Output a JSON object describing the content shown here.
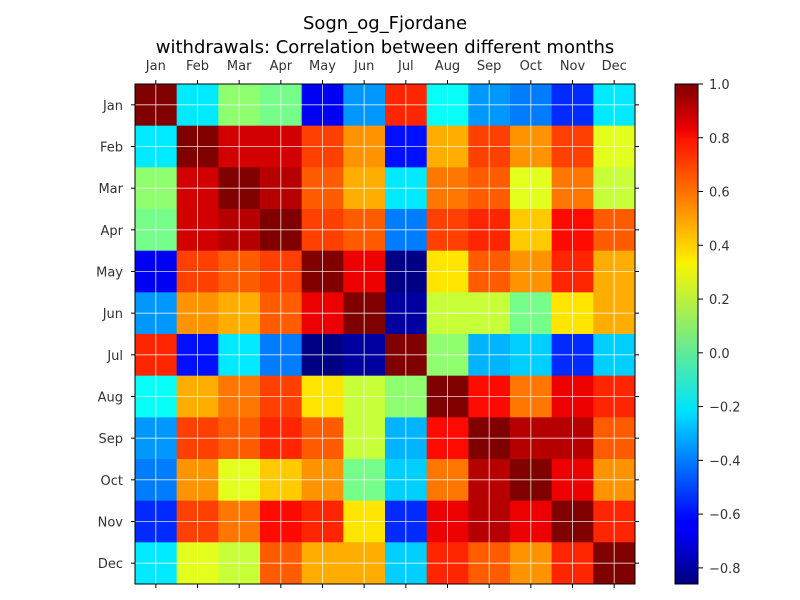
{
  "chart_data": {
    "type": "heatmap",
    "title": "Sogn_og_Fjordane",
    "subtitle": "withdrawals: Correlation between different months",
    "x_categories": [
      "Jan",
      "Feb",
      "Mar",
      "Apr",
      "May",
      "Jun",
      "Jul",
      "Aug",
      "Sep",
      "Oct",
      "Nov",
      "Dec"
    ],
    "y_categories": [
      "Jan",
      "Feb",
      "Mar",
      "Apr",
      "May",
      "Jun",
      "Jul",
      "Aug",
      "Sep",
      "Oct",
      "Nov",
      "Dec"
    ],
    "values": [
      [
        1.0,
        -0.2,
        0.1,
        0.05,
        -0.65,
        -0.35,
        0.7,
        -0.15,
        -0.35,
        -0.4,
        -0.55,
        -0.2
      ],
      [
        -0.2,
        1.0,
        0.85,
        0.85,
        0.65,
        0.5,
        -0.6,
        0.45,
        0.65,
        0.5,
        0.65,
        0.25
      ],
      [
        0.1,
        0.85,
        1.0,
        0.9,
        0.6,
        0.45,
        -0.2,
        0.55,
        0.6,
        0.25,
        0.55,
        0.2
      ],
      [
        0.05,
        0.85,
        0.9,
        1.0,
        0.65,
        0.6,
        -0.4,
        0.65,
        0.7,
        0.4,
        0.75,
        0.6
      ],
      [
        -0.65,
        0.65,
        0.6,
        0.65,
        1.0,
        0.8,
        -0.85,
        0.35,
        0.6,
        0.5,
        0.7,
        0.45
      ],
      [
        -0.35,
        0.5,
        0.45,
        0.6,
        0.8,
        1.0,
        -0.8,
        0.2,
        0.2,
        0.05,
        0.35,
        0.45
      ],
      [
        0.7,
        -0.6,
        -0.2,
        -0.4,
        -0.85,
        -0.8,
        1.0,
        0.1,
        -0.3,
        -0.25,
        -0.55,
        -0.25
      ],
      [
        -0.15,
        0.45,
        0.55,
        0.65,
        0.35,
        0.2,
        0.1,
        1.0,
        0.75,
        0.55,
        0.8,
        0.7
      ],
      [
        -0.35,
        0.65,
        0.6,
        0.7,
        0.6,
        0.2,
        -0.3,
        0.75,
        1.0,
        0.9,
        0.9,
        0.6
      ],
      [
        -0.4,
        0.5,
        0.25,
        0.4,
        0.5,
        0.05,
        -0.25,
        0.55,
        0.9,
        1.0,
        0.8,
        0.5
      ],
      [
        -0.55,
        0.65,
        0.55,
        0.75,
        0.7,
        0.35,
        -0.55,
        0.8,
        0.9,
        0.8,
        1.0,
        0.7
      ],
      [
        -0.2,
        0.25,
        0.2,
        0.6,
        0.45,
        0.45,
        -0.25,
        0.7,
        0.6,
        0.5,
        0.7,
        1.0
      ]
    ],
    "colorbar": {
      "range": [
        -0.86,
        1.0
      ],
      "ticks": [
        1.0,
        0.8,
        0.6,
        0.4,
        0.2,
        0.0,
        -0.2,
        -0.4,
        -0.6,
        -0.8
      ],
      "tick_labels": [
        "1.0",
        "0.8",
        "0.6",
        "0.4",
        "0.2",
        "0.0",
        "−0.2",
        "−0.4",
        "−0.6",
        "−0.8"
      ]
    },
    "colormap": "jet",
    "grid": true,
    "xlabel": "",
    "ylabel": ""
  }
}
